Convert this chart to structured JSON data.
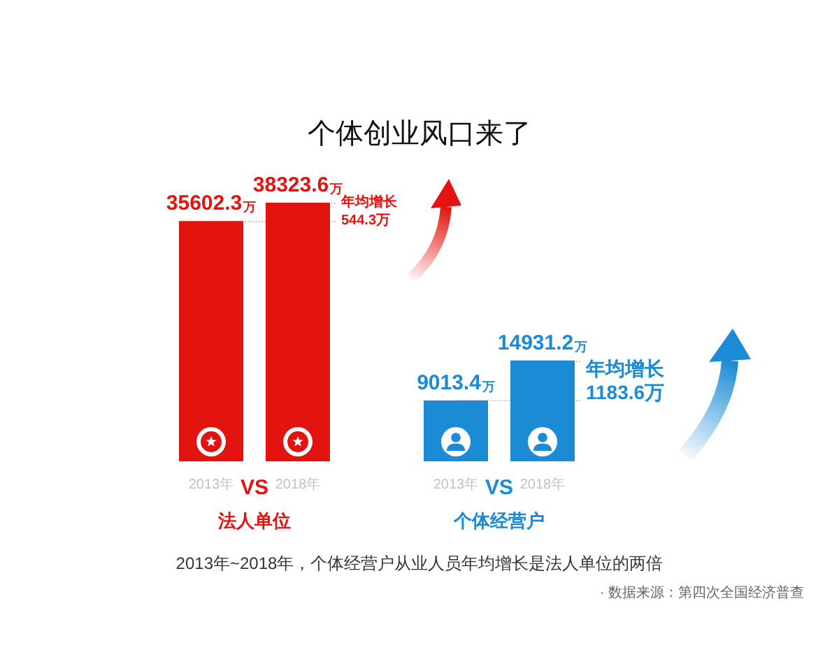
{
  "chart_data": [
    {
      "type": "bar",
      "title": "个体创业风口来了",
      "categories": [
        "2013年",
        "2018年"
      ],
      "values": [
        35602.3,
        38323.6
      ],
      "value_labels": [
        "35602.3万",
        "38323.6万"
      ],
      "color": "#e3140f",
      "xlabel": "法人单位",
      "tick_labels": "x",
      "ref_lines": [
        {
          "axis": "y",
          "value": 35602.3,
          "color": "#c8c8c8",
          "line_style": "dotted"
        },
        {
          "axis": "y",
          "value": 38323.6,
          "color": "#c8c8c8",
          "line_style": "dotted"
        }
      ],
      "annotations": [
        "VS",
        "年均增长\n544.3万",
        "2013年~2018年，个体经营户从业人员年均增长是法人单位的两倍",
        "· 数据来源：第四次全国经济普查"
      ]
    },
    {
      "type": "bar",
      "categories": [
        "2013年",
        "2018年"
      ],
      "values": [
        9013.4,
        14931.2
      ],
      "value_labels": [
        "9013.4万",
        "14931.2万"
      ],
      "color": "#1b8bd5",
      "xlabel": "个体经营户",
      "tick_labels": "x",
      "ref_lines": [
        {
          "axis": "y",
          "value": 9013.4,
          "color": "#c8c8c8",
          "line_style": "dotted"
        },
        {
          "axis": "y",
          "value": 14931.2,
          "color": "#c8c8c8",
          "line_style": "dotted"
        }
      ],
      "annotations": [
        "VS",
        "年均增长\n1183.6万"
      ]
    }
  ]
}
